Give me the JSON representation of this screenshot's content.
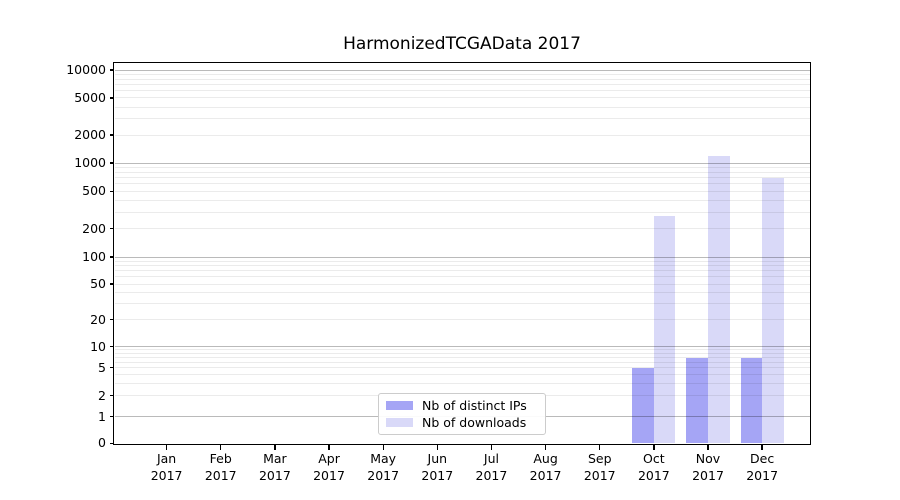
{
  "chart_data": {
    "type": "bar",
    "title": "HarmonizedTCGAData 2017",
    "x_categories": [
      "Jan",
      "Feb",
      "Mar",
      "Apr",
      "May",
      "Jun",
      "Jul",
      "Aug",
      "Sep",
      "Oct",
      "Nov",
      "Dec"
    ],
    "year": "2017",
    "y_scale": "symlog",
    "y_ticks": [
      0,
      1,
      2,
      5,
      10,
      20,
      50,
      100,
      200,
      500,
      1000,
      2000,
      5000,
      10000
    ],
    "ylim": [
      0,
      10000
    ],
    "grid": "horizontal major+minor, drawn above bars",
    "legend_position": "lower center",
    "series": [
      {
        "name": "Nb of distinct IPs",
        "color": "#a5a5f5",
        "values": [
          0,
          0,
          0,
          0,
          0,
          0,
          0,
          0,
          0,
          5,
          7,
          7
        ]
      },
      {
        "name": "Nb of downloads",
        "color": "#d9d9f8",
        "values": [
          0,
          0,
          0,
          0,
          0,
          0,
          0,
          0,
          0,
          270,
          1200,
          700
        ]
      }
    ]
  }
}
